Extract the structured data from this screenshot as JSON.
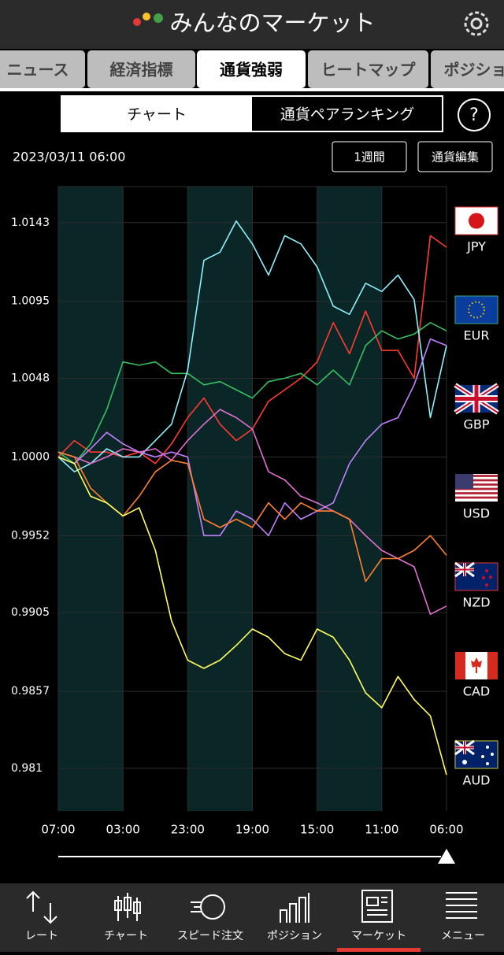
{
  "header": {
    "title": "みんなのマーケット"
  },
  "tabs": [
    "ニュース",
    "経済指標",
    "通貨強弱",
    "ヒートマップ",
    "ポジショ"
  ],
  "segments": [
    "チャート",
    "通貨ペアランキング"
  ],
  "help": "?",
  "timestamp": "2023/03/11 06:00",
  "buttons": [
    "1週間",
    "通貨編集"
  ],
  "chart_data": {
    "type": "line",
    "categories": [
      "07:00",
      null,
      null,
      null,
      "03:00",
      null,
      null,
      null,
      "23:00",
      null,
      null,
      null,
      "19:00",
      null,
      null,
      null,
      "15:00",
      null,
      null,
      null,
      "11:00",
      null,
      null,
      null,
      "06:00"
    ],
    "ylim": [
      0.9784,
      1.0165
    ],
    "yticks": [
      0.981,
      0.9857,
      0.9905,
      0.9952,
      {
        "value": 1,
        "label": "1.0000"
      },
      1.0048,
      1.0095,
      1.0143
    ],
    "grid": true,
    "series": [
      {
        "name": "JPY",
        "color": "#ff3b30",
        "values": [
          1.0,
          1.001,
          1.0003,
          1.0003,
          1.0,
          1.0003,
          0.9996,
          1.0008,
          1.0024,
          1.0036,
          1.002,
          1.001,
          1.0017,
          1.0034,
          1.0041,
          1.0048,
          1.0058,
          1.0082,
          1.0063,
          1.0089,
          1.0065,
          1.0065,
          1.0048,
          1.0135,
          1.0128
        ]
      },
      {
        "name": "EUR",
        "color": "#36c060",
        "values": [
          1.0003,
          0.9996,
          1.0008,
          1.0029,
          1.0058,
          1.0056,
          1.0058,
          1.0051,
          1.0051,
          1.0044,
          1.0046,
          1.0041,
          1.0036,
          1.0046,
          1.0048,
          1.0051,
          1.0044,
          1.0053,
          1.0044,
          1.0068,
          1.0077,
          1.0072,
          1.0075,
          1.0082,
          1.0077
        ]
      },
      {
        "name": "GBP",
        "color": "#8ff0ff",
        "values": [
          1.0,
          0.9991,
          0.9996,
          1.0005,
          1.0,
          1.0,
          1.001,
          1.002,
          1.0053,
          1.012,
          1.0125,
          1.0144,
          1.013,
          1.0111,
          1.0135,
          1.013,
          1.0116,
          1.0092,
          1.0087,
          1.0106,
          1.0101,
          1.0111,
          1.0096,
          1.0024,
          1.0068
        ]
      },
      {
        "name": "USD",
        "color": "#c080ff",
        "values": [
          1.0,
          0.9996,
          1.0005,
          1.0015,
          1.0008,
          1.0003,
          1.0,
          1.0003,
          1.0,
          0.9952,
          0.9952,
          0.9967,
          0.9962,
          0.9952,
          0.9972,
          0.9962,
          0.9967,
          0.9972,
          0.9996,
          1.001,
          1.002,
          1.0024,
          1.0044,
          1.0072,
          1.0068
        ]
      },
      {
        "name": "NZD",
        "color": "#e070d0",
        "values": [
          1.0003,
          1.0,
          0.9996,
          1.0,
          1.0005,
          1.0003,
          1.0005,
          0.9998,
          1.001,
          1.002,
          1.0029,
          1.0024,
          1.0017,
          0.9991,
          0.9986,
          0.9976,
          0.9972,
          0.9967,
          0.9962,
          0.9952,
          0.9943,
          0.9938,
          0.9933,
          0.9904,
          0.9909
        ]
      },
      {
        "name": "CAD",
        "color": "#ff8030",
        "values": [
          1.0003,
          1.0,
          0.9981,
          0.9972,
          0.9964,
          0.9976,
          0.9991,
          0.9998,
          0.9996,
          0.9962,
          0.9957,
          0.9962,
          0.9957,
          0.9972,
          0.9962,
          0.9972,
          0.9967,
          0.9967,
          0.9962,
          0.9924,
          0.9938,
          0.9938,
          0.9943,
          0.9952,
          0.994
        ]
      },
      {
        "name": "AUD",
        "color": "#ffff60",
        "values": [
          1.0,
          0.9996,
          0.9976,
          0.9972,
          0.9964,
          0.9969,
          0.9943,
          0.99,
          0.9876,
          0.9871,
          0.9876,
          0.9885,
          0.9895,
          0.989,
          0.988,
          0.9876,
          0.9895,
          0.989,
          0.9876,
          0.9856,
          0.9847,
          0.9866,
          0.9852,
          0.9842,
          0.9806
        ]
      }
    ]
  },
  "nav": [
    "レート",
    "チャート",
    "スピード注文",
    "ポジション",
    "マーケット",
    "メニュー"
  ]
}
